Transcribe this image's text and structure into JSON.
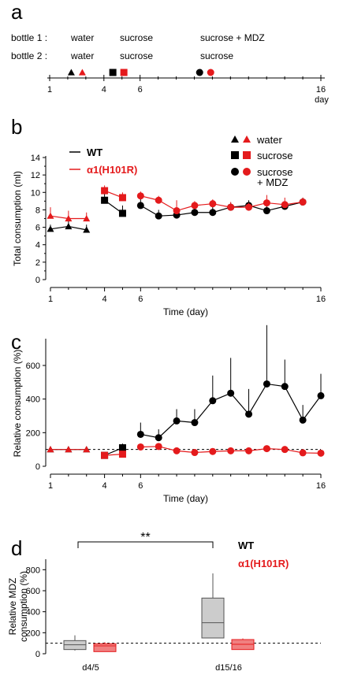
{
  "colors": {
    "wt": "#000000",
    "mut": "#e41a1c",
    "box_wt": "#cccccc",
    "box_mut": "#f08080",
    "dash": "#000000"
  },
  "panel_a": {
    "letter": "a",
    "bottle1_label": "bottle 1 :",
    "bottle2_label": "bottle 2 :",
    "periods": [
      {
        "bottle1": "water",
        "bottle2": "water",
        "marker": "triangle",
        "day": 2.5
      },
      {
        "bottle1": "sucrose",
        "bottle2": "sucrose",
        "marker": "square",
        "day": 4.8
      },
      {
        "bottle1": "sucrose + MDZ",
        "bottle2": "sucrose",
        "marker": "circle",
        "day": 9.6
      }
    ],
    "ticks": [
      "1",
      "4",
      "6",
      "16"
    ],
    "unit": "day"
  },
  "chart_data": [
    {
      "panel": "b",
      "type": "scatter",
      "xlabel": "Time (day)",
      "ylabel": "Total consumption (ml)",
      "xlim": [
        1,
        16
      ],
      "ylim": [
        0,
        14
      ],
      "x_ticks": [
        "1",
        "4",
        "6",
        "16"
      ],
      "y_ticks": [
        "0",
        "2",
        "4",
        "6",
        "8",
        "10",
        "12",
        "14"
      ],
      "genotype_legend": [
        "WT",
        "α1(H101R)"
      ],
      "marker_legend": [
        "water",
        "sucrose",
        "sucrose\n+ MDZ"
      ],
      "series": [
        {
          "name": "WT",
          "segments": [
            {
              "marker": "triangle",
              "x": [
                1,
                2,
                3
              ],
              "y": [
                5.8,
                6.1,
                5.7
              ],
              "err": [
                0.5,
                0.6,
                0.6
              ]
            },
            {
              "marker": "square",
              "x": [
                4,
                5
              ],
              "y": [
                9.1,
                7.6
              ],
              "err": [
                0.8,
                0.9
              ]
            },
            {
              "marker": "circle",
              "x": [
                6,
                7,
                8,
                9,
                10,
                11,
                12,
                13,
                14,
                15
              ],
              "y": [
                8.5,
                7.3,
                7.4,
                7.7,
                7.7,
                8.3,
                8.5,
                7.9,
                8.4,
                8.9
              ],
              "err": [
                0.9,
                0.7,
                0.7,
                0.7,
                0.7,
                0.5,
                0.6,
                0.6,
                0.5,
                0.5
              ]
            }
          ]
        },
        {
          "name": "α1(H101R)",
          "segments": [
            {
              "marker": "triangle",
              "x": [
                1,
                2,
                3
              ],
              "y": [
                7.3,
                7.0,
                7.0
              ],
              "err": [
                1.0,
                0.9,
                0.7
              ]
            },
            {
              "marker": "square",
              "x": [
                4,
                5
              ],
              "y": [
                10.2,
                9.4
              ],
              "err": [
                0.6,
                0.6
              ]
            },
            {
              "marker": "circle",
              "x": [
                6,
                7,
                8,
                9,
                10,
                11,
                12,
                13,
                14,
                15
              ],
              "y": [
                9.6,
                9.1,
                7.9,
                8.5,
                8.7,
                8.3,
                8.3,
                8.8,
                8.6,
                8.9
              ],
              "err": [
                0.5,
                0.5,
                1.2,
                0.5,
                0.5,
                0.6,
                0.5,
                0.9,
                0.8,
                0.5
              ]
            }
          ]
        }
      ]
    },
    {
      "panel": "c",
      "type": "scatter",
      "xlabel": "Time (day)",
      "ylabel": "Relative consumption (%)",
      "xlim": [
        1,
        16
      ],
      "ylim": [
        0,
        750
      ],
      "x_ticks": [
        "1",
        "4",
        "6",
        "16"
      ],
      "y_ticks": [
        "0",
        "200",
        "400",
        "600"
      ],
      "reference_line": 100,
      "series": [
        {
          "name": "WT",
          "segments": [
            {
              "marker": "triangle",
              "x": [
                1,
                2,
                3
              ],
              "y": [
                100,
                100,
                100
              ],
              "err": [
                0,
                0,
                0
              ]
            },
            {
              "marker": "square",
              "x": [
                4,
                5
              ],
              "y": [
                65,
                110
              ],
              "err": [
                10,
                25
              ]
            },
            {
              "marker": "circle",
              "x": [
                6,
                7,
                8,
                9,
                10,
                11,
                12,
                13,
                14,
                15,
                16
              ],
              "y": [
                190,
                170,
                270,
                260,
                390,
                435,
                310,
                490,
                475,
                275,
                420
              ],
              "err": [
                70,
                50,
                70,
                80,
                150,
                210,
                150,
                350,
                160,
                90,
                130
              ]
            }
          ]
        },
        {
          "name": "α1(H101R)",
          "segments": [
            {
              "marker": "triangle",
              "x": [
                1,
                2,
                3
              ],
              "y": [
                100,
                100,
                100
              ],
              "err": [
                0,
                0,
                0
              ]
            },
            {
              "marker": "square",
              "x": [
                4,
                5
              ],
              "y": [
                65,
                72
              ],
              "err": [
                10,
                12
              ]
            },
            {
              "marker": "circle",
              "x": [
                6,
                7,
                8,
                9,
                10,
                11,
                12,
                13,
                14,
                15,
                16
              ],
              "y": [
                115,
                118,
                92,
                82,
                88,
                92,
                92,
                105,
                100,
                80,
                78
              ],
              "err": [
                10,
                15,
                12,
                10,
                10,
                12,
                10,
                12,
                10,
                10,
                10
              ]
            }
          ]
        }
      ]
    },
    {
      "panel": "d",
      "type": "box",
      "ylabel": "Relative MDZ\nconsumption (%)",
      "ylim": [
        0,
        900
      ],
      "y_ticks": [
        "0",
        "200",
        "400",
        "600",
        "800"
      ],
      "categories": [
        "d4/5",
        "d15/16"
      ],
      "reference_line": 100,
      "legend": [
        "WT",
        "α1(H101R)"
      ],
      "significance": {
        "label": "**",
        "from": "d4/5",
        "to": "d15/16",
        "series": "WT"
      },
      "series": [
        {
          "name": "WT",
          "boxes": [
            {
              "min": 30,
              "q1": 40,
              "median": 85,
              "q3": 125,
              "max": 175
            },
            {
              "min": 150,
              "q1": 150,
              "median": 295,
              "q3": 530,
              "max": 765
            }
          ]
        },
        {
          "name": "α1(H101R)",
          "boxes": [
            {
              "min": 20,
              "q1": 20,
              "median": 75,
              "q3": 95,
              "max": 110
            },
            {
              "min": 40,
              "q1": 40,
              "median": 90,
              "q3": 135,
              "max": 145
            }
          ]
        }
      ]
    }
  ]
}
